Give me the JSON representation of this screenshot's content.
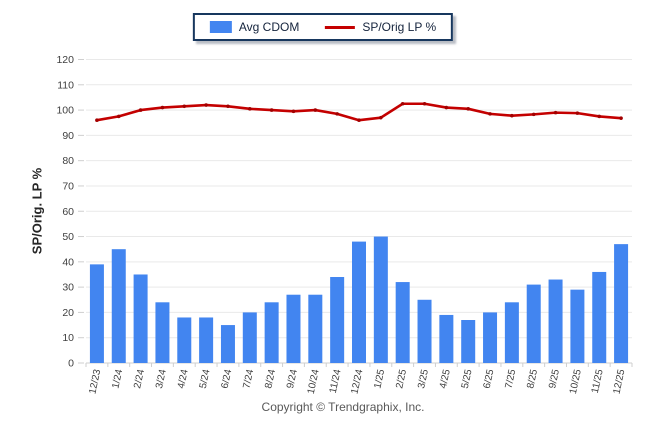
{
  "chart_data": {
    "type": "bar+line",
    "title": "",
    "categories": [
      "12/23",
      "1/24",
      "2/24",
      "3/24",
      "4/24",
      "5/24",
      "6/24",
      "7/24",
      "8/24",
      "9/24",
      "10/24",
      "11/24",
      "12/24",
      "1/25",
      "2/25",
      "3/25",
      "4/25",
      "5/25",
      "6/25",
      "7/25",
      "8/25",
      "9/25",
      "10/25",
      "11/25",
      "12/25"
    ],
    "series": [
      {
        "name": "Avg CDOM",
        "type": "bar",
        "color": "#4285f0",
        "values": [
          39,
          45,
          35,
          24,
          18,
          18,
          15,
          20,
          24,
          27,
          27,
          34,
          48,
          50,
          32,
          25,
          19,
          17,
          20,
          24,
          31,
          33,
          29,
          36,
          47
        ]
      },
      {
        "name": "SP/Orig LP %",
        "type": "line",
        "color": "#c40000",
        "marker_color": "#a30000",
        "values": [
          96,
          97.5,
          100,
          101,
          101.5,
          102,
          101.5,
          100.5,
          100,
          99.5,
          100,
          98.5,
          96,
          97,
          102.5,
          102.5,
          101,
          100.5,
          98.5,
          97.8,
          98.3,
          99,
          98.8,
          97.5,
          96.8
        ]
      }
    ],
    "ylabel": "SP/Orig. LP %",
    "ylim": [
      0,
      120
    ],
    "ytick_step": 10,
    "yticks": [
      "0",
      "10",
      "20",
      "30",
      "40",
      "50",
      "60",
      "70",
      "80",
      "90",
      "100",
      "110",
      "120"
    ],
    "grid": true,
    "legend_position": "top-center"
  },
  "footer": {
    "copyright": "Copyright © Trendgraphix, Inc."
  },
  "colors": {
    "grid": "#e9e9e9",
    "axis": "#cfcfcf",
    "tick_text": "#404040",
    "legend_border": "#17375e",
    "legend_text": "#14233c",
    "copyright_text": "#595959"
  }
}
